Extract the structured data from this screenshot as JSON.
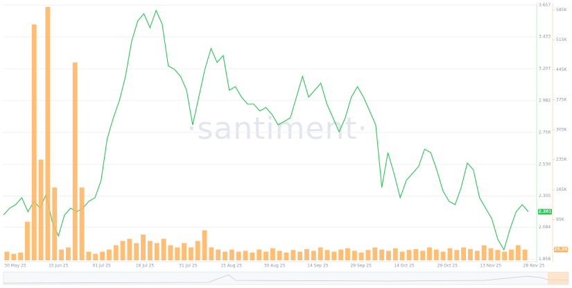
{
  "chart_data": {
    "type": "line-bar",
    "watermark": "·santiment·",
    "x_labels": [
      "30 May 25",
      "15 Jun 25",
      "01 Jul 25",
      "16 Jul 25",
      "31 Jul 25",
      "15 Aug 25",
      "30 Aug 25",
      "14 Sep 25",
      "29 Sep 25",
      "14 Oct 25",
      "29 Oct 25",
      "13 Nov 25",
      "28 Nov 25"
    ],
    "ylim": [
      1.85,
      3.67
    ],
    "yticks": [
      1.858,
      2.084,
      2.305,
      {
        "value": 2.53,
        "label": "2.530"
      },
      2.756,
      2.982,
      3.207,
      3.433,
      3.657
    ],
    "y2lim": [
      0,
      600000
    ],
    "y2ticks": [
      {
        "value": 25200,
        "label": "25.2K"
      },
      {
        "value": 95000,
        "label": "95K"
      },
      {
        "value": 165000,
        "label": "165K"
      },
      {
        "value": 235000,
        "label": "235K"
      },
      {
        "value": 305000,
        "label": "305K"
      },
      {
        "value": 375000,
        "label": "375K"
      },
      {
        "value": 445000,
        "label": "445K"
      },
      {
        "value": 515000,
        "label": "515K"
      },
      {
        "value": 585000,
        "label": "585K"
      }
    ],
    "grid": true,
    "series": [
      {
        "name": "Price",
        "color": "#26c953",
        "values": [
          2.17,
          2.219,
          2.244,
          2.293,
          2.194,
          2.268,
          2.219,
          2.317,
          2.121,
          2.022,
          2.17,
          2.219,
          2.194,
          2.219,
          2.268,
          2.293,
          2.416,
          2.711,
          2.859,
          2.982,
          3.154,
          3.4,
          3.547,
          3.597,
          3.498,
          3.621,
          3.523,
          3.228,
          3.203,
          3.154,
          3.055,
          2.809,
          3.006,
          3.203,
          3.351,
          3.252,
          3.301,
          3.055,
          3.08,
          3.006,
          2.957,
          2.957,
          2.908,
          2.932,
          2.883,
          2.809,
          2.834,
          2.859,
          3.006,
          3.154,
          3.006,
          3.055,
          3.105,
          2.957,
          2.859,
          2.76,
          2.859,
          3.006,
          3.08,
          3.006,
          2.908,
          2.809,
          2.367,
          2.613,
          2.465,
          2.293,
          2.416,
          2.465,
          2.514,
          2.637,
          2.613,
          2.49,
          2.342,
          2.268,
          2.244,
          2.367,
          2.539,
          2.49,
          2.293,
          2.219,
          2.145,
          1.998,
          1.924,
          2.071,
          2.194,
          2.244,
          2.194
        ],
        "badge": "2.201"
      },
      {
        "name": "Volume",
        "color": "#ffb35c",
        "axis": "y2",
        "values": [
          20000,
          15000,
          18000,
          90000,
          551000,
          235000,
          592000,
          170000,
          25000,
          30000,
          462000,
          170000,
          20000,
          15000,
          20000,
          25000,
          35000,
          45000,
          50000,
          40000,
          60000,
          45000,
          40000,
          50000,
          35000,
          30000,
          40000,
          30000,
          45000,
          70000,
          30000,
          25000,
          20000,
          25000,
          20000,
          22000,
          18000,
          25000,
          20000,
          28000,
          22000,
          18000,
          24000,
          20000,
          26000,
          22000,
          30000,
          24000,
          20000,
          25000,
          28000,
          22000,
          18000,
          24000,
          30000,
          25000,
          22000,
          28000,
          20000,
          24000,
          26000,
          22000,
          30000,
          25000,
          20000,
          28000,
          24000,
          30000,
          26000,
          22000,
          35000,
          28000,
          24000,
          20000,
          25000,
          35000,
          25000
        ],
        "badge": "25.2K"
      }
    ]
  }
}
